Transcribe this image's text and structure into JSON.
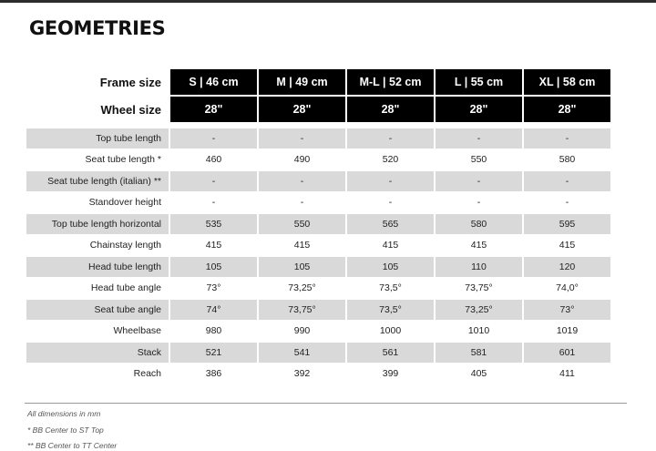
{
  "title": "GEOMETRIES",
  "header": {
    "frame_size_label": "Frame size",
    "wheel_size_label": "Wheel size",
    "frame_sizes": [
      "S | 46 cm",
      "M | 49 cm",
      "M-L | 52 cm",
      "L | 55 cm",
      "XL | 58 cm"
    ],
    "wheel_sizes": [
      "28\"",
      "28\"",
      "28\"",
      "28\"",
      "28\""
    ]
  },
  "rows": [
    {
      "label": "Top tube length",
      "values": [
        "-",
        "-",
        "-",
        "-",
        "-"
      ]
    },
    {
      "label": "Seat tube length *",
      "values": [
        "460",
        "490",
        "520",
        "550",
        "580"
      ]
    },
    {
      "label": "Seat tube length (italian) **",
      "values": [
        "-",
        "-",
        "-",
        "-",
        "-"
      ]
    },
    {
      "label": "Standover height",
      "values": [
        "-",
        "-",
        "-",
        "-",
        "-"
      ]
    },
    {
      "label": "Top tube length horizontal",
      "values": [
        "535",
        "550",
        "565",
        "580",
        "595"
      ]
    },
    {
      "label": "Chainstay length",
      "values": [
        "415",
        "415",
        "415",
        "415",
        "415"
      ]
    },
    {
      "label": "Head tube length",
      "values": [
        "105",
        "105",
        "105",
        "110",
        "120"
      ]
    },
    {
      "label": "Head tube angle",
      "values": [
        "73°",
        "73,25°",
        "73,5°",
        "73,75°",
        "74,0°"
      ]
    },
    {
      "label": "Seat tube angle",
      "values": [
        "74°",
        "73,75°",
        "73,5°",
        "73,25°",
        "73°"
      ]
    },
    {
      "label": "Wheelbase",
      "values": [
        "980",
        "990",
        "1000",
        "1010",
        "1019"
      ]
    },
    {
      "label": "Stack",
      "values": [
        "521",
        "541",
        "561",
        "581",
        "601"
      ]
    },
    {
      "label": "Reach",
      "values": [
        "386",
        "392",
        "399",
        "405",
        "411"
      ]
    }
  ],
  "footnotes": {
    "dimensions": "All dimensions in mm",
    "note1": "* BB Center to ST Top",
    "note2": "** BB Center to TT Center"
  }
}
